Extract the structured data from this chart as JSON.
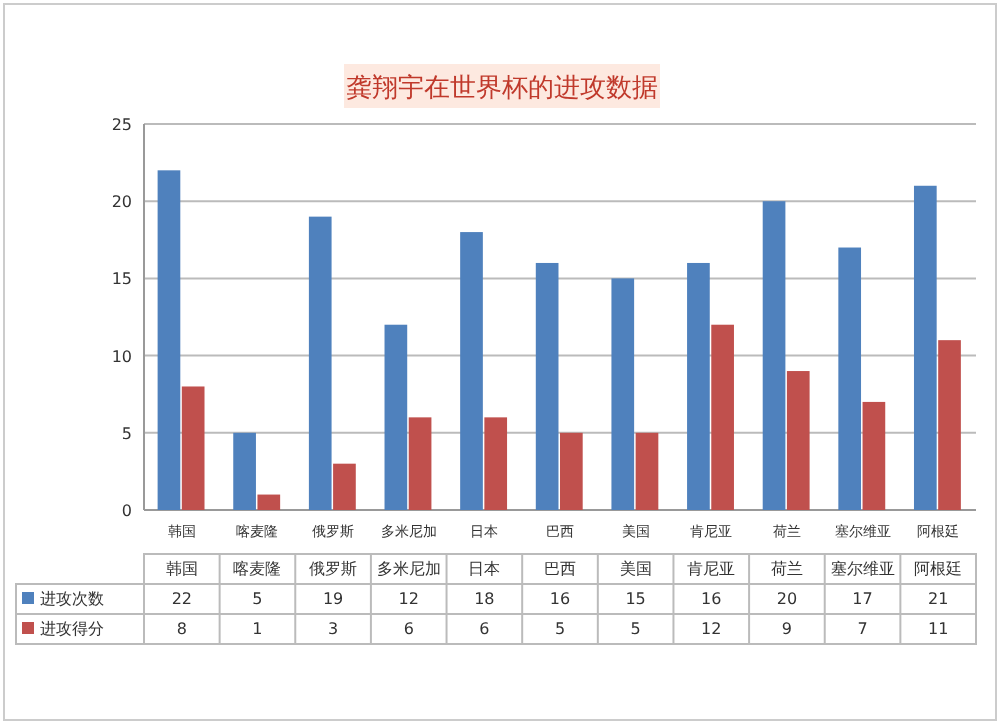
{
  "chart_data": {
    "type": "bar",
    "title": "龚翔宇在世界杯的进攻数据",
    "categories": [
      "韩国",
      "喀麦隆",
      "俄罗斯",
      "多米尼加",
      "日本",
      "巴西",
      "美国",
      "肯尼亚",
      "荷兰",
      "塞尔维亚",
      "阿根廷"
    ],
    "series": [
      {
        "name": "进攻次数",
        "color": "#4f81bd",
        "values": [
          22,
          5,
          19,
          12,
          18,
          16,
          15,
          16,
          20,
          17,
          21
        ]
      },
      {
        "name": "进攻得分",
        "color": "#c0504d",
        "values": [
          8,
          1,
          3,
          6,
          6,
          5,
          5,
          12,
          9,
          7,
          11
        ]
      }
    ],
    "ylim": [
      0,
      25
    ],
    "yticks": [
      0,
      5,
      10,
      15,
      20,
      25
    ],
    "grid": "y",
    "legend": "bottom",
    "data_labels": true
  }
}
